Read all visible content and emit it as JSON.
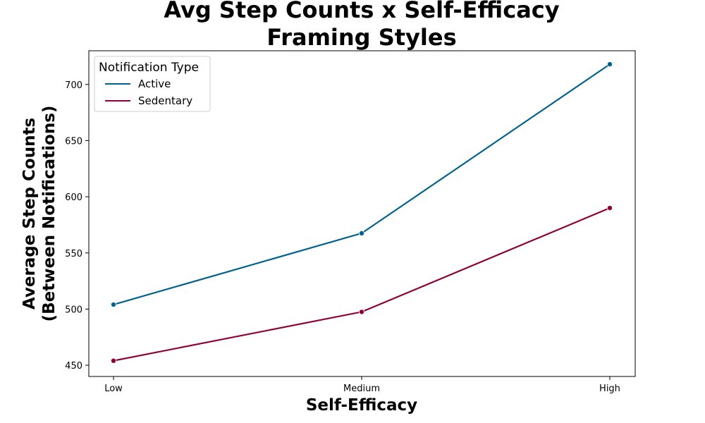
{
  "chart_data": {
    "type": "line",
    "title_lines": [
      "Avg Step Counts x Self-Efficacy",
      "Framing Styles"
    ],
    "xlabel": "Self-Efficacy",
    "ylabel_lines": [
      "Average Step Counts",
      "(Between Notifications)"
    ],
    "categories": [
      "Low",
      "Medium",
      "High"
    ],
    "yticks": [
      450,
      500,
      550,
      600,
      650,
      700
    ],
    "ylim": [
      440,
      730
    ],
    "grid": false,
    "legend": {
      "title": "Notification Type",
      "placement": "top-left"
    },
    "series": [
      {
        "name": "Active",
        "color": "#00628f",
        "values": [
          504,
          567.5,
          718
        ]
      },
      {
        "name": "Sedentary",
        "color": "#8f0039",
        "values": [
          454,
          497.5,
          590
        ]
      }
    ]
  }
}
